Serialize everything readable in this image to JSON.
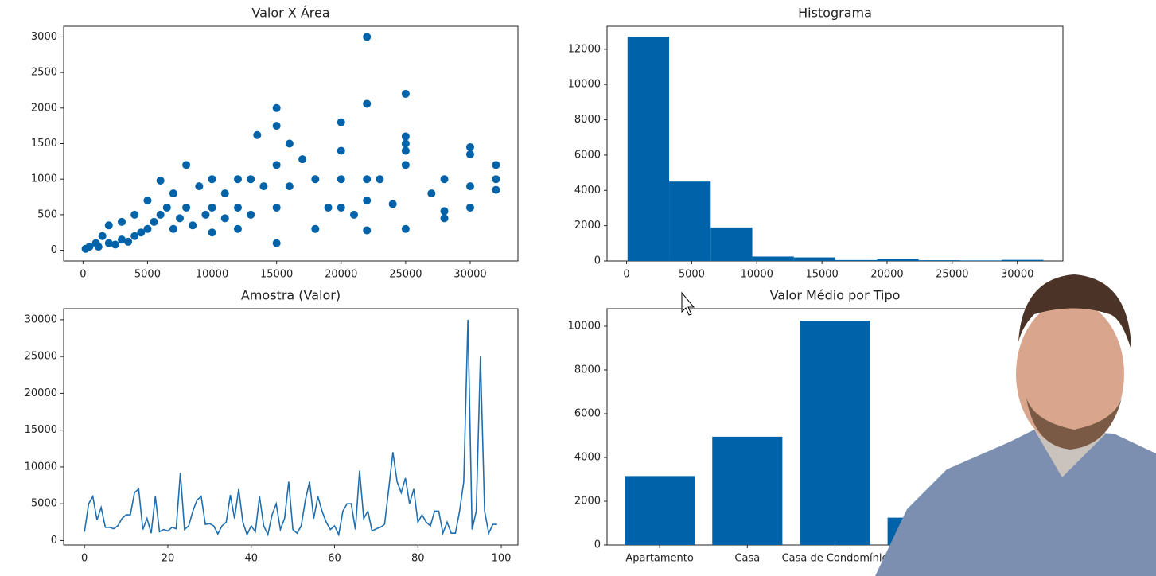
{
  "chart_data": [
    {
      "type": "scatter",
      "title": "Valor X Área",
      "color": "#0063a9",
      "x": [
        22000,
        22000,
        25000,
        15000,
        15000,
        20000,
        16000,
        13500,
        17000,
        20000,
        25000,
        25000,
        25000,
        30000,
        30000,
        32000,
        32000,
        32000,
        28000,
        28000,
        28000,
        27000,
        24000,
        22000,
        22000,
        22000,
        25000,
        25000,
        23000,
        20000,
        20000,
        18000,
        18000,
        16000,
        15000,
        15000,
        15000,
        14000,
        13000,
        13000,
        12000,
        12000,
        11000,
        10000,
        10000,
        10000,
        9000,
        8000,
        8000,
        7000,
        7000,
        6000,
        6000,
        5000,
        5000,
        4000,
        4000,
        3000,
        3000,
        2000,
        2000,
        1500,
        1000,
        500,
        200,
        1200,
        2500,
        3500,
        4500,
        5500,
        6500,
        7500,
        8500,
        9500,
        11000,
        12000,
        30000,
        30000,
        19000,
        21000
      ],
      "y": [
        3000,
        2060,
        2200,
        2000,
        1750,
        1800,
        1500,
        1620,
        1280,
        1400,
        1600,
        1500,
        1400,
        1450,
        1350,
        1200,
        1000,
        850,
        1000,
        550,
        450,
        800,
        650,
        1000,
        700,
        280,
        300,
        1200,
        1000,
        1000,
        600,
        1000,
        300,
        900,
        1200,
        600,
        100,
        900,
        1000,
        500,
        1000,
        300,
        800,
        1000,
        600,
        250,
        900,
        1200,
        600,
        800,
        300,
        980,
        500,
        700,
        300,
        500,
        200,
        400,
        150,
        350,
        100,
        200,
        100,
        50,
        20,
        50,
        80,
        120,
        250,
        400,
        600,
        450,
        350,
        500,
        450,
        600,
        600,
        900,
        600,
        500
      ],
      "xlim": [
        -1500,
        33700
      ],
      "ylim": [
        -150,
        3150
      ],
      "xticks": [
        0,
        5000,
        10000,
        15000,
        20000,
        25000,
        30000
      ],
      "yticks": [
        0,
        500,
        1000,
        1500,
        2000,
        2500,
        3000
      ]
    },
    {
      "type": "histogram",
      "title": "Histograma",
      "color": "#0063a9",
      "bins": [
        75,
        3267,
        6459,
        9651,
        12843,
        16035,
        19227,
        22419,
        25611,
        28803,
        31995
      ],
      "values": [
        12700,
        4500,
        1900,
        250,
        200,
        50,
        100,
        40,
        30,
        60
      ],
      "xlim": [
        -1500,
        33500
      ],
      "ylim": [
        0,
        13300
      ],
      "xticks": [
        0,
        5000,
        10000,
        15000,
        20000,
        25000,
        30000
      ],
      "yticks": [
        0,
        2000,
        4000,
        6000,
        8000,
        10000,
        12000
      ]
    },
    {
      "type": "line",
      "title": "Amostra (Valor)",
      "color": "#1f6fb0",
      "x": [
        0,
        1,
        2,
        3,
        4,
        5,
        6,
        7,
        8,
        9,
        10,
        11,
        12,
        13,
        14,
        15,
        16,
        17,
        18,
        19,
        20,
        21,
        22,
        23,
        24,
        25,
        26,
        27,
        28,
        29,
        30,
        31,
        32,
        33,
        34,
        35,
        36,
        37,
        38,
        39,
        40,
        41,
        42,
        43,
        44,
        45,
        46,
        47,
        48,
        49,
        50,
        51,
        52,
        53,
        54,
        55,
        56,
        57,
        58,
        59,
        60,
        61,
        62,
        63,
        64,
        65,
        66,
        67,
        68,
        69,
        70,
        71,
        72,
        73,
        74,
        75,
        76,
        77,
        78,
        79,
        80,
        81,
        82,
        83,
        84,
        85,
        86,
        87,
        88,
        89,
        90,
        91,
        92,
        93,
        94,
        95,
        96,
        97,
        98,
        99
      ],
      "values": [
        1200,
        5000,
        6000,
        2800,
        4500,
        1800,
        1800,
        1600,
        2000,
        3000,
        3500,
        3500,
        6500,
        7000,
        1500,
        3000,
        1000,
        6000,
        1200,
        1500,
        1300,
        1800,
        1600,
        9200,
        1500,
        2000,
        4000,
        5500,
        6000,
        2200,
        2300,
        2000,
        900,
        2000,
        2500,
        6200,
        3000,
        7000,
        2500,
        800,
        2000,
        1200,
        6000,
        2000,
        800,
        3500,
        5000,
        1500,
        3000,
        8000,
        1500,
        1000,
        2000,
        5500,
        8000,
        3000,
        6000,
        4000,
        2500,
        1500,
        2000,
        800,
        4000,
        5000,
        5000,
        1500,
        9500,
        3000,
        4000,
        1300,
        1600,
        1800,
        2200,
        7000,
        12000,
        8000,
        6500,
        8500,
        5000,
        7000,
        2500,
        3500,
        2500,
        2000,
        4000,
        4000,
        1000,
        2500,
        1000,
        1000,
        4000,
        8000,
        30000,
        1500,
        4000,
        25000,
        4000,
        1000,
        2200,
        2200
      ],
      "xlim": [
        -5,
        104
      ],
      "ylim": [
        -600,
        31500
      ],
      "xticks": [
        0,
        20,
        40,
        60,
        80,
        100
      ],
      "yticks": [
        0,
        5000,
        10000,
        15000,
        20000,
        25000,
        30000
      ]
    },
    {
      "type": "bar",
      "title": "Valor Médio por Tipo",
      "color": "#0063a9",
      "categories": [
        "Apartamento",
        "Casa",
        "Casa de Condomínio",
        null
      ],
      "values": [
        3150,
        4950,
        10250,
        1250
      ],
      "xlim": [
        -0.6,
        4.6
      ],
      "ylim": [
        0,
        10800
      ],
      "yticks": [
        0,
        2000,
        4000,
        6000,
        8000,
        10000
      ]
    }
  ]
}
